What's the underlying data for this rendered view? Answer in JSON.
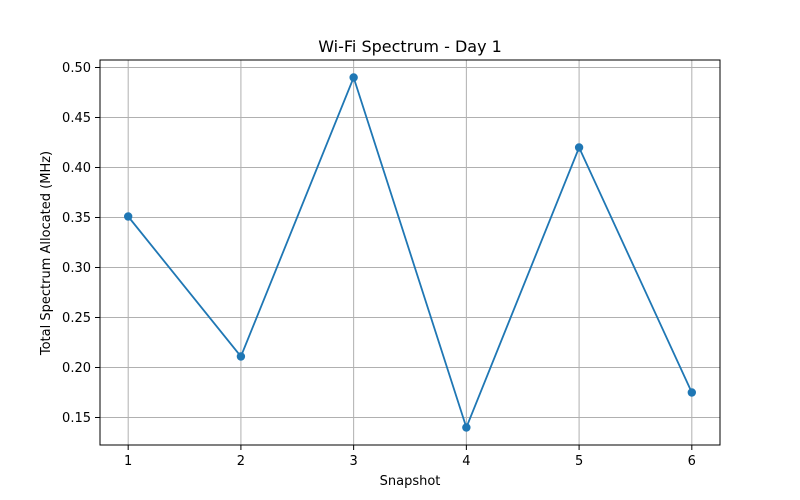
{
  "chart_data": {
    "type": "line",
    "title": "Wi-Fi Spectrum - Day 1",
    "xlabel": "Snapshot",
    "ylabel": "Total Spectrum Allocated (MHz)",
    "x": [
      1,
      2,
      3,
      4,
      5,
      6
    ],
    "series": [
      {
        "values": [
          0.351,
          0.211,
          0.49,
          0.14,
          0.42,
          0.175
        ]
      }
    ],
    "xlim": [
      0.75,
      6.25
    ],
    "ylim": [
      0.1225,
      0.5075
    ],
    "xticks": [
      "1",
      "2",
      "3",
      "4",
      "5",
      "6"
    ],
    "yticks": [
      "0.15",
      "0.20",
      "0.25",
      "0.30",
      "0.35",
      "0.40",
      "0.45",
      "0.50"
    ],
    "grid": true,
    "markers": true,
    "line_color": "#1f77b4"
  }
}
